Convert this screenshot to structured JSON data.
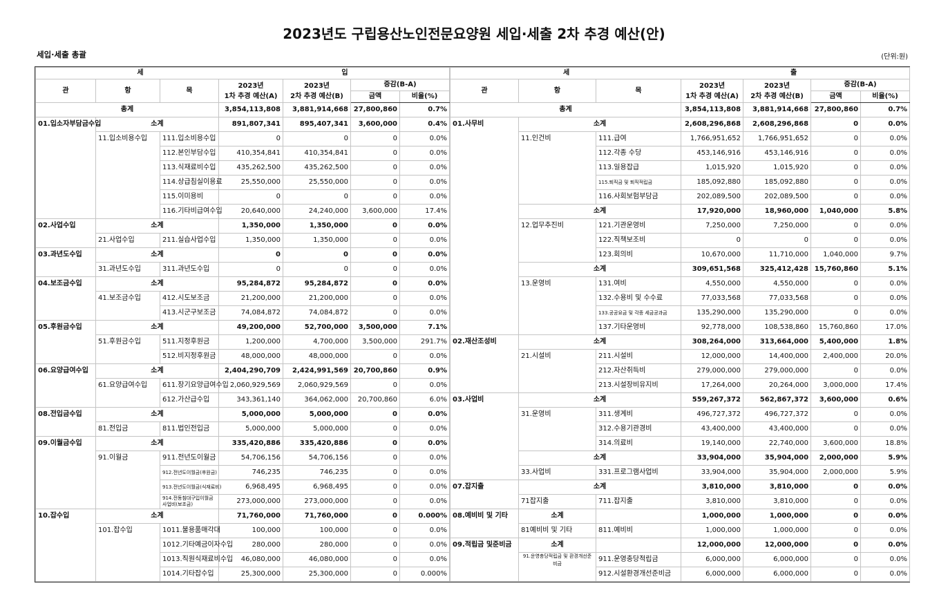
{
  "title": "2023년도 구립용산노인전문요양원 세입·세출 2차 추경 예산(안)",
  "subtitle": "세입·세출 총괄",
  "unit": "(단위:원)",
  "headers": {
    "gwan": "관",
    "hang": "항",
    "mok": "목",
    "a_line1": "2023년",
    "a_line2": "1차 추경 예산(A)",
    "b_line1": "2023년",
    "b_line2": "2차 추경 예산(B)",
    "diff_group": "증감(B-A)",
    "diff": "금액",
    "rate": "비율(%)"
  },
  "income": {
    "section_chars": [
      "세",
      "입"
    ],
    "rows": [
      {
        "total": true,
        "gwan": "총계",
        "a": "3,854,113,808",
        "b": "3,881,914,668",
        "diff": "27,800,860",
        "rate": "0.7%"
      },
      {
        "gwan": "01.입소자부담금수입",
        "subtotal": "소계",
        "a": "891,807,341",
        "b": "895,407,341",
        "diff": "3,600,000",
        "rate": "0.4%"
      },
      {
        "hang": "11.입소비용수입",
        "mok": "111.입소비용수입",
        "a": "0",
        "b": "0",
        "diff": "0",
        "rate": "0.0%"
      },
      {
        "mok": "112.본인부담수입",
        "a": "410,354,841",
        "b": "410,354,841",
        "diff": "0",
        "rate": "0.0%"
      },
      {
        "mok": "113.식재료비수입",
        "a": "435,262,500",
        "b": "435,262,500",
        "diff": "0",
        "rate": "0.0%"
      },
      {
        "mok": "114.상급침실이용료",
        "a": "25,550,000",
        "b": "25,550,000",
        "diff": "0",
        "rate": "0.0%"
      },
      {
        "mok": "115.이미용비",
        "a": "0",
        "b": "0",
        "diff": "0",
        "rate": "0.0%"
      },
      {
        "mok": "116.기타비급여수입",
        "a": "20,640,000",
        "b": "24,240,000",
        "diff": "3,600,000",
        "rate": "17.4%"
      },
      {
        "gwan": "02.사업수입",
        "subtotal": "소계",
        "a": "1,350,000",
        "b": "1,350,000",
        "diff": "0",
        "rate": "0.0%"
      },
      {
        "hang": "21.사업수입",
        "mok": "211.실습사업수입",
        "a": "1,350,000",
        "b": "1,350,000",
        "diff": "0",
        "rate": "0.0%"
      },
      {
        "gwan": "03.과년도수입",
        "subtotal": "소계",
        "a": "0",
        "b": "0",
        "diff": "0",
        "rate": "0.0%"
      },
      {
        "hang": "31.과년도수입",
        "mok": "311.과년도수입",
        "a": "0",
        "b": "0",
        "diff": "0",
        "rate": "0.0%"
      },
      {
        "gwan": "04.보조금수입",
        "subtotal": "소계",
        "a": "95,284,872",
        "b": "95,284,872",
        "diff": "0",
        "rate": "0.0%"
      },
      {
        "hang": "41.보조금수입",
        "mok": "412.시도보조금",
        "a": "21,200,000",
        "b": "21,200,000",
        "diff": "0",
        "rate": "0.0%"
      },
      {
        "mok": "413.시군구보조금",
        "a": "74,084,872",
        "b": "74,084,872",
        "diff": "0",
        "rate": "0.0%"
      },
      {
        "gwan": "05.후원금수입",
        "subtotal": "소계",
        "a": "49,200,000",
        "b": "52,700,000",
        "diff": "3,500,000",
        "rate": "7.1%"
      },
      {
        "hang": "51.후원금수입",
        "mok": "511.지정후원금",
        "a": "1,200,000",
        "b": "4,700,000",
        "diff": "3,500,000",
        "rate": "291.7%"
      },
      {
        "mok": "512.비지정후원금",
        "a": "48,000,000",
        "b": "48,000,000",
        "diff": "0",
        "rate": "0.0%"
      },
      {
        "gwan": "06.요양급여수입",
        "subtotal": "소계",
        "a": "2,404,290,709",
        "b": "2,424,991,569",
        "diff": "20,700,860",
        "rate": "0.9%"
      },
      {
        "hang": "61.요양급여수입",
        "mok": "611.장기요양급여수입",
        "a": "2,060,929,569",
        "b": "2,060,929,569",
        "diff": "0",
        "rate": "0.0%"
      },
      {
        "mok": "612.가산급수입",
        "a": "343,361,140",
        "b": "364,062,000",
        "diff": "20,700,860",
        "rate": "6.0%"
      },
      {
        "gwan": "08.전입금수입",
        "subtotal": "소계",
        "a": "5,000,000",
        "b": "5,000,000",
        "diff": "0",
        "rate": "0.0%"
      },
      {
        "hang": "81.전입금",
        "mok": "811.법인전입금",
        "a": "5,000,000",
        "b": "5,000,000",
        "diff": "0",
        "rate": "0.0%"
      },
      {
        "gwan": "09.이월금수입",
        "subtotal": "소계",
        "a": "335,420,886",
        "b": "335,420,886",
        "diff": "0",
        "rate": "0.0%"
      },
      {
        "hang": "91.이월금",
        "mok": "911.전년도이월금",
        "a": "54,706,156",
        "b": "54,706,156",
        "diff": "0",
        "rate": "0.0%"
      },
      {
        "mok": "912.전년도이월금(후원금)",
        "a": "746,235",
        "b": "746,235",
        "diff": "0",
        "rate": "0.0%"
      },
      {
        "mok": "913.전년도이월금(식재료비)",
        "a": "6,968,495",
        "b": "6,968,495",
        "diff": "0",
        "rate": "0.0%"
      },
      {
        "mok": "914.전동침대구입이월금사업비(보조금)",
        "a": "273,000,000",
        "b": "273,000,000",
        "diff": "0",
        "rate": "0.0%"
      },
      {
        "gwan": "10.잡수입",
        "subtotal": "소계",
        "a": "71,760,000",
        "b": "71,760,000",
        "diff": "0",
        "rate": "0.000%"
      },
      {
        "hang": "101.잡수입",
        "mok": "1011.불용품매각대",
        "a": "100,000",
        "b": "100,000",
        "diff": "0",
        "rate": "0.0%"
      },
      {
        "mok": "1012.기타예금이자수입",
        "a": "280,000",
        "b": "280,000",
        "diff": "0",
        "rate": "0.0%"
      },
      {
        "mok": "1013.직원식재료비수입",
        "a": "46,080,000",
        "b": "46,080,000",
        "diff": "0",
        "rate": "0.0%"
      },
      {
        "mok": "1014.기타잡수입",
        "a": "25,300,000",
        "b": "25,300,000",
        "diff": "0",
        "rate": "0.000%"
      }
    ]
  },
  "expense": {
    "section_chars": [
      "세",
      "출"
    ],
    "rows": [
      {
        "total": true,
        "gwan": "총계",
        "a": "3,854,113,808",
        "b": "3,881,914,668",
        "diff": "27,800,860",
        "rate": "0.7%"
      },
      {
        "gwan": "01.사무비",
        "subtotal": "소계",
        "a": "2,608,296,868",
        "b": "2,608,296,868",
        "diff": "0",
        "rate": "0.0%"
      },
      {
        "hang": "11.인건비",
        "mok": "111.급여",
        "a": "1,766,951,652",
        "b": "1,766,951,652",
        "diff": "0",
        "rate": "0.0%"
      },
      {
        "mok": "112.각종 수당",
        "a": "453,146,916",
        "b": "453,146,916",
        "diff": "0",
        "rate": "0.0%"
      },
      {
        "mok": "113.일용잡급",
        "a": "1,015,920",
        "b": "1,015,920",
        "diff": "0",
        "rate": "0.0%"
      },
      {
        "mok": "115.퇴직금 및 퇴직적립금",
        "a": "185,092,880",
        "b": "185,092,880",
        "diff": "0",
        "rate": "0.0%"
      },
      {
        "mok": "116.사회보험부담금",
        "a": "202,089,500",
        "b": "202,089,500",
        "diff": "0",
        "rate": "0.0%"
      },
      {
        "subtotal": "소계",
        "a": "17,920,000",
        "b": "18,960,000",
        "diff": "1,040,000",
        "rate": "5.8%"
      },
      {
        "hang": "12.업무추진비",
        "mok": "121.기관운영비",
        "a": "7,250,000",
        "b": "7,250,000",
        "diff": "0",
        "rate": "0.0%"
      },
      {
        "mok": "122.직책보조비",
        "a": "0",
        "b": "0",
        "diff": "0",
        "rate": "0.0%"
      },
      {
        "mok": "123.회의비",
        "a": "10,670,000",
        "b": "11,710,000",
        "diff": "1,040,000",
        "rate": "9.7%"
      },
      {
        "subtotal": "소계",
        "a": "309,651,568",
        "b": "325,412,428",
        "diff": "15,760,860",
        "rate": "5.1%"
      },
      {
        "hang": "13.운영비",
        "mok": "131.여비",
        "a": "4,550,000",
        "b": "4,550,000",
        "diff": "0",
        "rate": "0.0%"
      },
      {
        "mok": "132.수용비 및 수수료",
        "a": "77,033,568",
        "b": "77,033,568",
        "diff": "0",
        "rate": "0.0%"
      },
      {
        "mok": "133.공공요금 및 각종 세금공과금",
        "a": "135,290,000",
        "b": "135,290,000",
        "diff": "0",
        "rate": "0.0%"
      },
      {
        "mok": "137.기타운영비",
        "a": "92,778,000",
        "b": "108,538,860",
        "diff": "15,760,860",
        "rate": "17.0%"
      },
      {
        "gwan": "02.재산조성비",
        "subtotal": "소계",
        "a": "308,264,000",
        "b": "313,664,000",
        "diff": "5,400,000",
        "rate": "1.8%"
      },
      {
        "hang": "21.시설비",
        "mok": "211.시설비",
        "a": "12,000,000",
        "b": "14,400,000",
        "diff": "2,400,000",
        "rate": "20.0%"
      },
      {
        "mok": "212.자산취득비",
        "a": "279,000,000",
        "b": "279,000,000",
        "diff": "0",
        "rate": "0.0%"
      },
      {
        "mok": "213.시설장비유지비",
        "a": "17,264,000",
        "b": "20,264,000",
        "diff": "3,000,000",
        "rate": "17.4%"
      },
      {
        "gwan": "03.사업비",
        "subtotal": "소계",
        "a": "559,267,372",
        "b": "562,867,372",
        "diff": "3,600,000",
        "rate": "0.6%"
      },
      {
        "hang": "31.운영비",
        "mok": "311.생계비",
        "a": "496,727,372",
        "b": "496,727,372",
        "diff": "0",
        "rate": "0.0%"
      },
      {
        "mok": "312.수용기관경비",
        "a": "43,400,000",
        "b": "43,400,000",
        "diff": "0",
        "rate": "0.0%"
      },
      {
        "mok": "314.의료비",
        "a": "19,140,000",
        "b": "22,740,000",
        "diff": "3,600,000",
        "rate": "18.8%"
      },
      {
        "subtotal": "소계",
        "a": "33,904,000",
        "b": "35,904,000",
        "diff": "2,000,000",
        "rate": "5.9%"
      },
      {
        "hang": "33.사업비",
        "mok": "331.프로그램사업비",
        "a": "33,904,000",
        "b": "35,904,000",
        "diff": "2,000,000",
        "rate": "5.9%"
      },
      {
        "gwan": "07.잡지출",
        "subtotal": "소계",
        "a": "3,810,000",
        "b": "3,810,000",
        "diff": "0",
        "rate": "0.0%"
      },
      {
        "hang": "71잡지출",
        "mok": "711.잡지출",
        "a": "3,810,000",
        "b": "3,810,000",
        "diff": "0",
        "rate": "0.0%"
      },
      {
        "gwan": "08.예비비 및 기타",
        "subtotal": "소계",
        "subtotal_in_hang": true,
        "a": "1,000,000",
        "b": "1,000,000",
        "diff": "0",
        "rate": "0.0%"
      },
      {
        "hang": "81예비비 및 기타",
        "mok": "811.예비비",
        "a": "1,000,000",
        "b": "1,000,000",
        "diff": "0",
        "rate": "0.0%"
      },
      {
        "gwan": "09.적립금 및준비금",
        "subtotal": "소계",
        "subtotal_in_hang": true,
        "a": "12,000,000",
        "b": "12,000,000",
        "diff": "0",
        "rate": "0.0%"
      },
      {
        "hang": "91.운영충당적립금 및 환경개선준비금",
        "mok": "911.운영충당적립금",
        "a": "6,000,000",
        "b": "6,000,000",
        "diff": "0",
        "rate": "0.0%"
      },
      {
        "mok": "912.시설환경개선준비금",
        "a": "6,000,000",
        "b": "6,000,000",
        "diff": "0",
        "rate": "0.0%"
      }
    ]
  }
}
